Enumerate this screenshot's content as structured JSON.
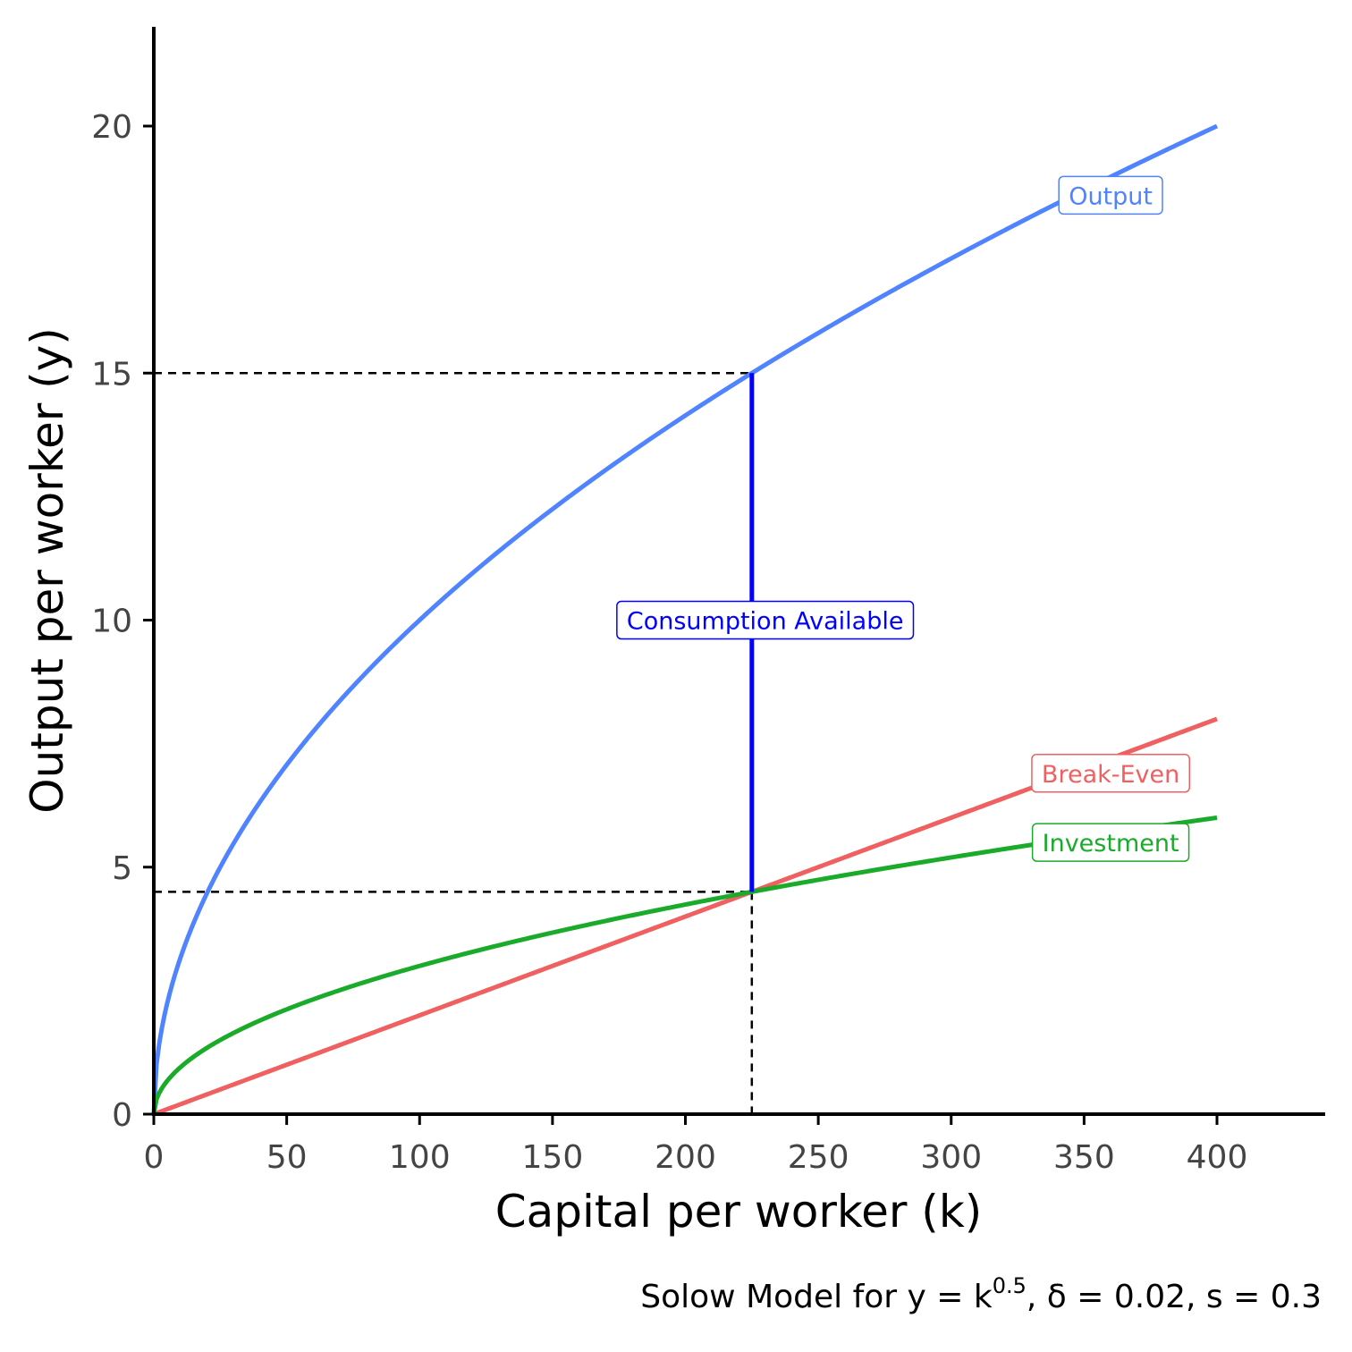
{
  "chart_data": {
    "type": "line",
    "xlabel": "Capital per worker (k)",
    "ylabel": "Output per worker (y)",
    "caption": {
      "prefix": "Solow Model for y = k",
      "superscript": "0.5",
      "suffix": ", δ = 0.02, s = 0.3"
    },
    "xlim": [
      0,
      440
    ],
    "ylim": [
      0,
      22
    ],
    "x_ticks": [
      0,
      50,
      100,
      150,
      200,
      250,
      300,
      350,
      400
    ],
    "y_ticks": [
      0,
      5,
      10,
      15,
      20
    ],
    "params": {
      "alpha": 0.5,
      "delta": 0.02,
      "s": 0.3,
      "k_max": 400
    },
    "series": [
      {
        "name": "Output",
        "color": "#5083ff",
        "formula": "y = k^0.5",
        "x": [
          0,
          5,
          25,
          50,
          100,
          150,
          200,
          225,
          250,
          300,
          350,
          400
        ],
        "values": [
          0,
          2.24,
          5,
          7.07,
          10,
          12.25,
          14.14,
          15,
          15.81,
          17.32,
          18.71,
          20
        ],
        "label": {
          "text": "Output",
          "x": 360,
          "y": 18.6
        }
      },
      {
        "name": "Break-Even",
        "color": "#f06060",
        "formula": "δ·k",
        "x": [
          0,
          100,
          200,
          225,
          300,
          400
        ],
        "values": [
          0,
          2,
          4,
          4.5,
          6,
          8
        ],
        "label": {
          "text": "Break-Even",
          "x": 360,
          "y": 6.9
        }
      },
      {
        "name": "Investment",
        "color": "#1aab2a",
        "formula": "s·k^0.5",
        "x": [
          0,
          5,
          25,
          50,
          100,
          150,
          200,
          225,
          250,
          300,
          350,
          400
        ],
        "values": [
          0,
          0.67,
          1.5,
          2.12,
          3,
          3.67,
          4.24,
          4.5,
          4.74,
          5.2,
          5.61,
          6
        ],
        "label": {
          "text": "Investment",
          "x": 360,
          "y": 5.5
        }
      }
    ],
    "steady_state": {
      "k": 225,
      "y": 15,
      "investment": 4.5
    },
    "consumption": {
      "text": "Consumption Available",
      "color": "#0000ff",
      "from": 4.5,
      "to": 15,
      "label_x": 230,
      "label_y": 10
    }
  }
}
